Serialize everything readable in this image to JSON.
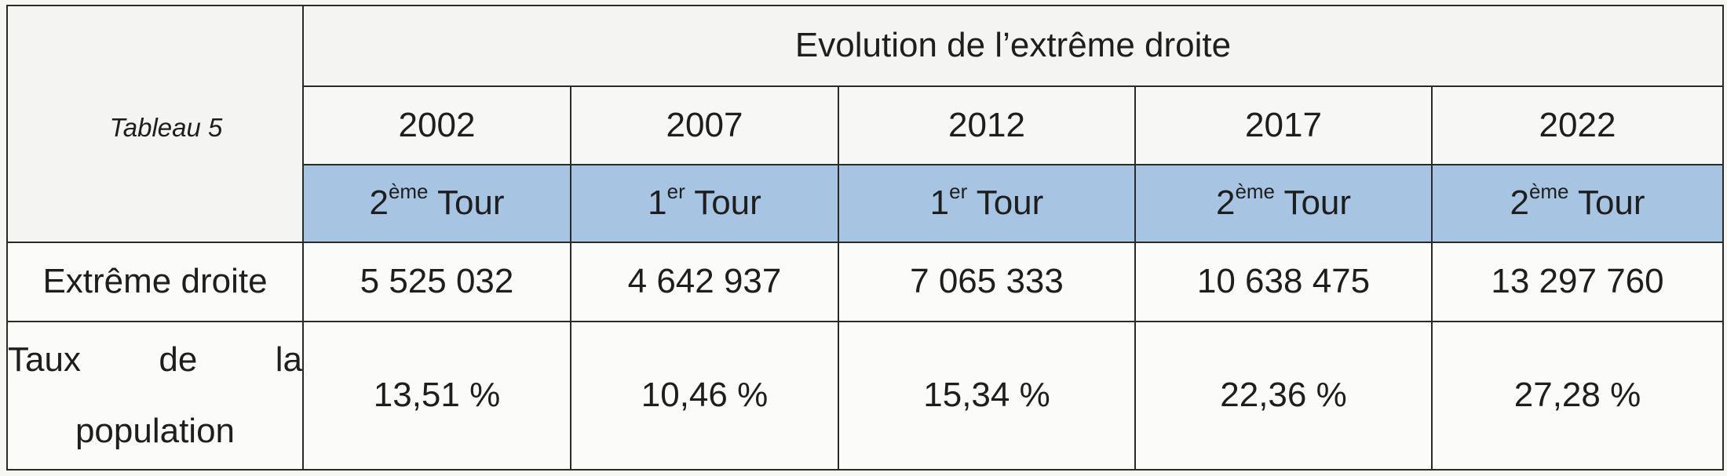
{
  "table_caption": "Tableau 5",
  "header_title": "Evolution de l’extrême droite",
  "columns": [
    {
      "year": "2002",
      "tour_num": "2",
      "tour_sup": "ème",
      "tour_word": " Tour",
      "votes": "5 525 032",
      "rate": "13,51 %"
    },
    {
      "year": "2007",
      "tour_num": "1",
      "tour_sup": "er",
      "tour_word": " Tour",
      "votes": "4 642 937",
      "rate": "10,46 %"
    },
    {
      "year": "2012",
      "tour_num": "1",
      "tour_sup": "er",
      "tour_word": " Tour",
      "votes": "7 065 333",
      "rate": "15,34 %"
    },
    {
      "year": "2017",
      "tour_num": "2",
      "tour_sup": "ème",
      "tour_word": " Tour",
      "votes": "10 638 475",
      "rate": "22,36 %"
    },
    {
      "year": "2022",
      "tour_num": "2",
      "tour_sup": "ème",
      "tour_word": " Tour",
      "votes": "13 297 760",
      "rate": "27,28 %"
    }
  ],
  "row_labels": {
    "votes": "Extrême droite",
    "rate_words": [
      "Taux",
      "de",
      "la"
    ],
    "rate_line2": "population"
  },
  "colors": {
    "tour_row_background": "#a7c4e2",
    "grid_lines": "#2a2a2a"
  }
}
